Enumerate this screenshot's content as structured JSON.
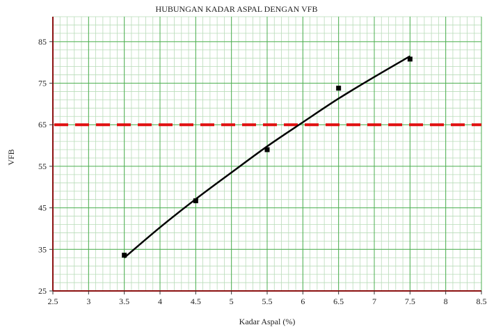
{
  "chart_data": {
    "type": "scatter",
    "title": "HUBUNGAN KADAR ASPAL DENGAN VFB",
    "xlabel": "Kadar Aspal (%)",
    "ylabel": "VFB",
    "xlim": [
      2.5,
      8.5
    ],
    "ylim": [
      25,
      91
    ],
    "x_ticks": [
      2.5,
      3,
      3.5,
      4,
      4.5,
      5,
      5.5,
      6,
      6.5,
      7,
      7.5,
      8,
      8.5
    ],
    "x_tick_labels": [
      "2.5",
      "3",
      "3.5",
      "4",
      "4.5",
      "5",
      "5.5",
      "6",
      "6.5",
      "7",
      "7.5",
      "8",
      "8.5"
    ],
    "y_ticks": [
      25,
      35,
      45,
      55,
      65,
      75,
      85
    ],
    "y_tick_labels": [
      "25",
      "35",
      "45",
      "55",
      "65",
      "75",
      "85"
    ],
    "grid": true,
    "minor_grid": true,
    "points": [
      {
        "x": 3.5,
        "y": 33.6
      },
      {
        "x": 4.5,
        "y": 46.7
      },
      {
        "x": 5.5,
        "y": 59.0
      },
      {
        "x": 6.5,
        "y": 73.8
      },
      {
        "x": 7.5,
        "y": 80.8
      }
    ],
    "trendline": {
      "type": "polynomial",
      "x": [
        3.5,
        4.0,
        4.5,
        5.0,
        5.5,
        6.0,
        6.5,
        7.0,
        7.5
      ],
      "y": [
        33.0,
        40.3,
        47.1,
        53.5,
        59.8,
        65.6,
        71.3,
        76.5,
        81.5
      ]
    },
    "reference_line": {
      "y": 65
    },
    "colors": {
      "grid_major": "#4caf50",
      "grid_minor": "#b9dcb9",
      "axis": "#8b1010",
      "marker": "#000000",
      "trendline": "#000000",
      "reference_line": "#e01010"
    }
  }
}
